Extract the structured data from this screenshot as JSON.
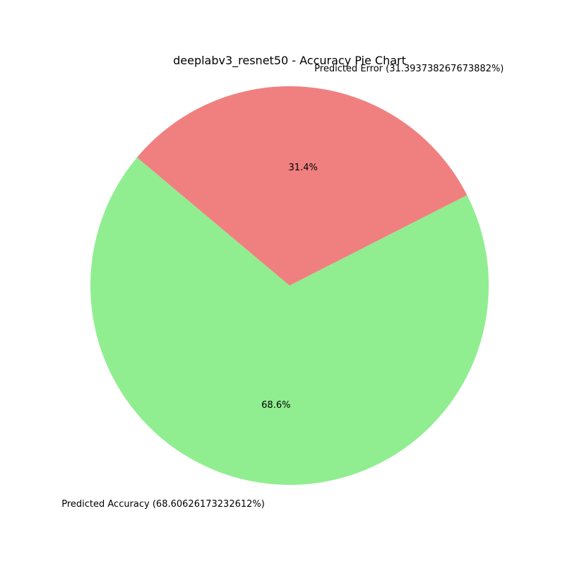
{
  "chart_data": {
    "type": "pie",
    "title": "deeplabv3_resnet50 - Accuracy Pie Chart",
    "slices": [
      {
        "label": "Predicted  Accuracy (68.60626173232612%)",
        "value": 68.60626173232612,
        "pct_label": "68.6%",
        "color": "#90ee90"
      },
      {
        "label": "Predicted Error (31.393738267673882%)",
        "value": 31.393738267673882,
        "pct_label": "31.4%",
        "color": "#f08080"
      }
    ],
    "start_angle_deg": 140,
    "legend": "none"
  }
}
